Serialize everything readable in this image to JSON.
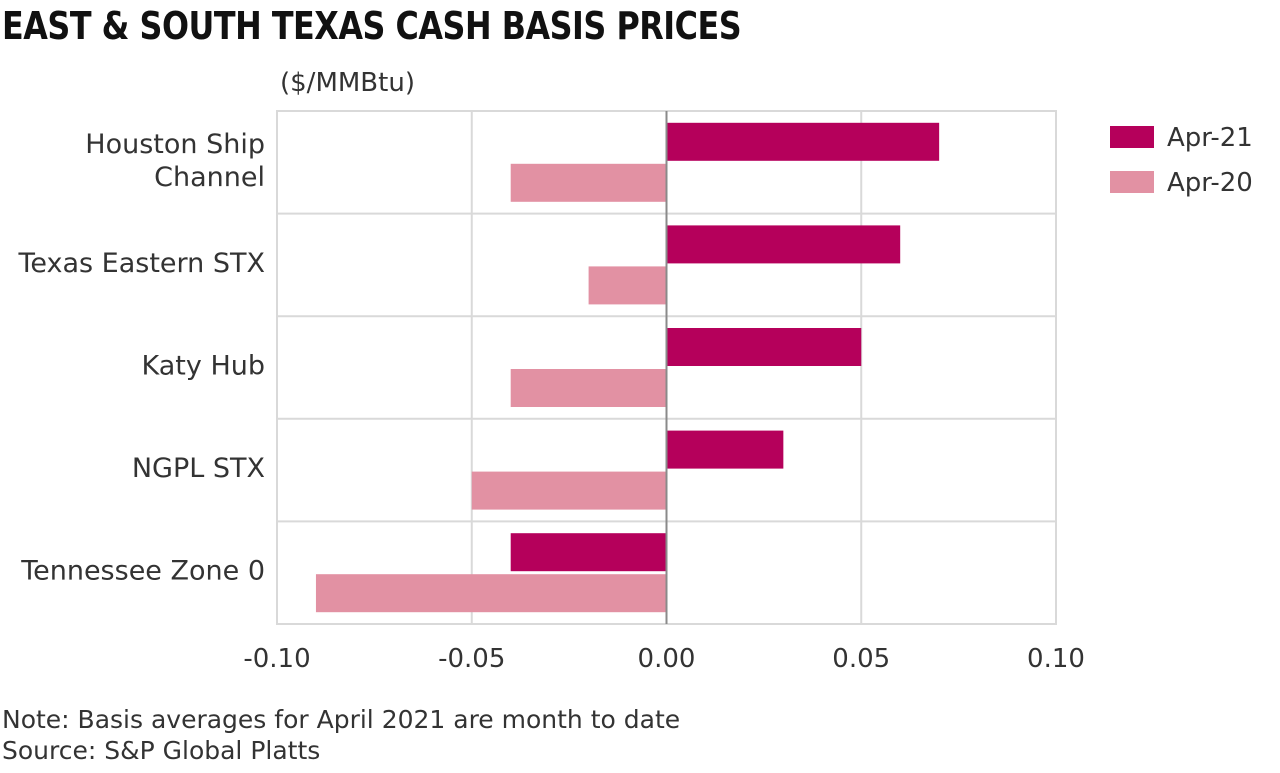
{
  "page": {
    "title": "EAST & SOUTH TEXAS CASH BASIS PRICES",
    "unit_label": "($/MMBtu)",
    "note": "Note: Basis averages for April 2021 are month to date",
    "source": "Source: S&P Global Platts"
  },
  "chart_data": {
    "type": "bar",
    "orientation": "horizontal",
    "title": "EAST & SOUTH TEXAS CASH BASIS PRICES",
    "ylabel": "($/MMBtu)",
    "categories": [
      [
        "Houston Ship",
        "Channel"
      ],
      [
        "Texas Eastern STX"
      ],
      [
        "Katy Hub"
      ],
      [
        "NGPL STX"
      ],
      [
        "Tennessee Zone 0"
      ]
    ],
    "series": [
      {
        "name": "Apr-21",
        "color": "#b5005b",
        "values": [
          0.07,
          0.06,
          0.05,
          0.03,
          -0.04
        ]
      },
      {
        "name": "Apr-20",
        "color": "#e291a3",
        "values": [
          -0.04,
          -0.02,
          -0.04,
          -0.05,
          -0.09
        ]
      }
    ],
    "xlim": [
      -0.1,
      0.1
    ],
    "xticks": [
      "-0.10",
      "-0.05",
      "0.00",
      "0.05",
      "0.10"
    ],
    "grid": true,
    "legend": "top-right"
  }
}
